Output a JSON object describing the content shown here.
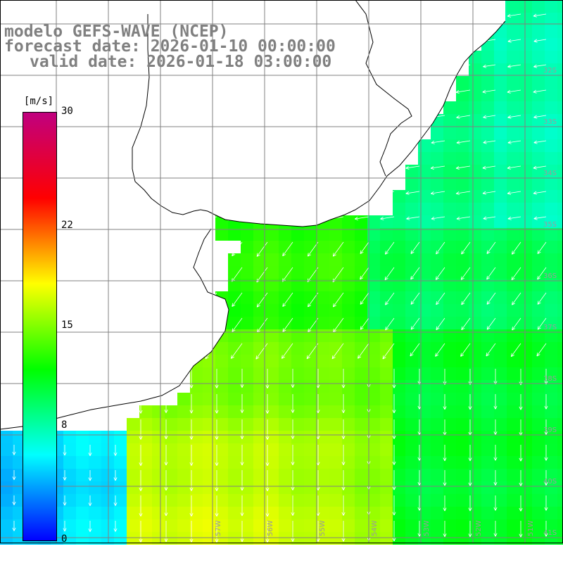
{
  "title": {
    "model": "modelo GEFS-WAVE (NCEP)",
    "forecast": "forecast date: 2026-01-10 00:00:00",
    "valid": "valid date: 2026-01-18 03:00:00"
  },
  "colorbar": {
    "unit": "m/s",
    "ticks": [
      "30",
      "22",
      "15",
      "8",
      "0"
    ],
    "tick_values": [
      30,
      22,
      15,
      8,
      0
    ],
    "min": 0,
    "max": 30,
    "colors": [
      "#0000ff",
      "#00ffff",
      "#00ff00",
      "#ffff00",
      "#ff0000",
      "#c0007f"
    ]
  },
  "grid": {
    "lat_labels": [
      "32S",
      "33S",
      "34S",
      "35S",
      "36S",
      "37S",
      "38S",
      "39S",
      "40S",
      "41S"
    ],
    "lon_labels": [
      "57W",
      "56W",
      "55W",
      "54W",
      "53W",
      "52W",
      "51W"
    ]
  },
  "colors": {
    "land": "#ffffff",
    "gridline": "#808080",
    "coast": "#000000",
    "arrows": "#ffffff"
  },
  "field": {
    "description_levels_ms": {
      "north_shelf": 9,
      "rio_de_la_plata": 13,
      "south_zone": 14,
      "south_peak": 17,
      "sw_corner": 4,
      "offshore": 10
    },
    "dominant_wind_direction": "NE to SW, turning to N to S in southern part"
  }
}
